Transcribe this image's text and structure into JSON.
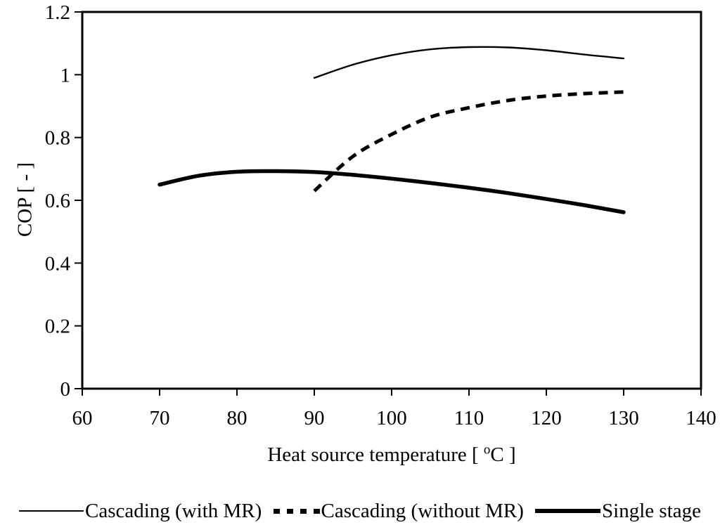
{
  "colors": {
    "line": "#000000",
    "background": "#ffffff"
  },
  "chart_data": {
    "type": "line",
    "title": "",
    "xlabel": "Heat source temperature [ °C ]",
    "xlabel_parts": {
      "prefix": "Heat source temperature [ ",
      "sup": "o",
      "suffix": "C ]"
    },
    "ylabel": "COP [ - ]",
    "xlim": [
      60,
      140
    ],
    "ylim": [
      0,
      1.2
    ],
    "x_ticks": [
      60,
      70,
      80,
      90,
      100,
      110,
      120,
      130,
      140
    ],
    "x_tick_labels": [
      "60",
      "70",
      "80",
      "90",
      "100",
      "110",
      "120",
      "130",
      "140"
    ],
    "y_ticks": [
      0,
      0.2,
      0.4,
      0.6,
      0.8,
      1,
      1.2
    ],
    "y_tick_labels": [
      "0",
      "0.2",
      "0.4",
      "0.6",
      "0.8",
      "1",
      "1.2"
    ],
    "grid": false,
    "legend_position": "bottom",
    "series": [
      {
        "name": "Cascading (with MR)",
        "style": "thin-solid",
        "x": [
          90,
          95,
          100,
          105,
          110,
          115,
          120,
          125,
          130
        ],
        "y": [
          0.99,
          1.032,
          1.062,
          1.081,
          1.088,
          1.087,
          1.078,
          1.064,
          1.052
        ]
      },
      {
        "name": "Cascading (without MR)",
        "style": "dashed",
        "x": [
          90,
          95,
          100,
          105,
          110,
          115,
          120,
          125,
          130
        ],
        "y": [
          0.63,
          0.74,
          0.81,
          0.865,
          0.895,
          0.918,
          0.932,
          0.94,
          0.945
        ]
      },
      {
        "name": "Single stage",
        "style": "thick-solid",
        "x": [
          70,
          75,
          80,
          85,
          90,
          95,
          100,
          105,
          110,
          115,
          120,
          125,
          130
        ],
        "y": [
          0.65,
          0.678,
          0.691,
          0.693,
          0.69,
          0.681,
          0.669,
          0.655,
          0.64,
          0.623,
          0.604,
          0.584,
          0.562
        ]
      }
    ]
  }
}
